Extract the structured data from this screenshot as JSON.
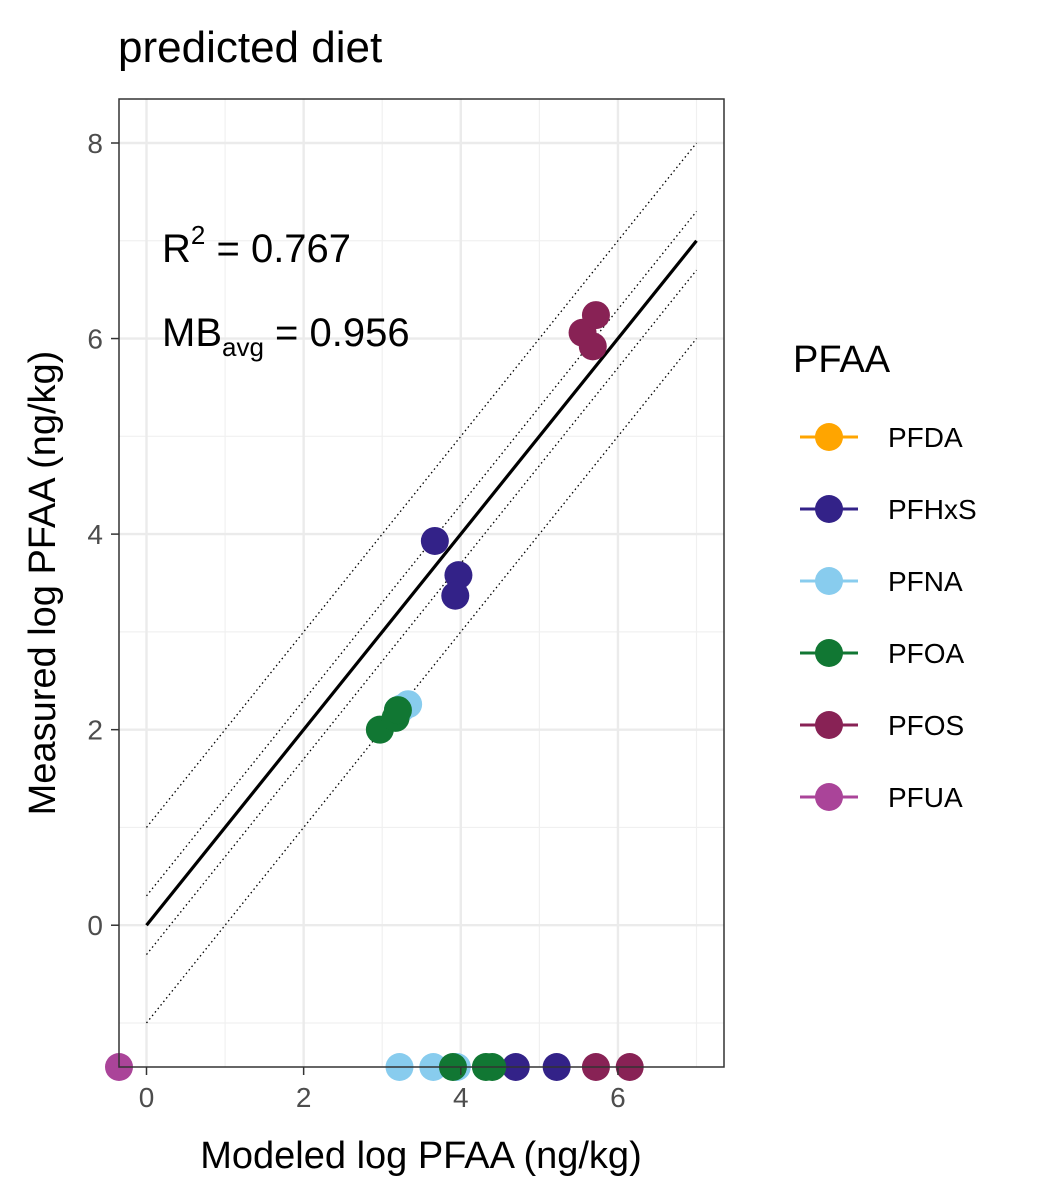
{
  "chart_data": {
    "type": "scatter",
    "title": "predicted diet",
    "xlabel": "Modeled log PFAA (ng/kg)",
    "ylabel": "Measured log PFAA (ng/kg)",
    "xlim": [
      -0.35,
      7.35
    ],
    "ylim": [
      -1.45,
      8.45
    ],
    "x_ticks": [
      0,
      2,
      4,
      6
    ],
    "y_ticks": [
      0,
      2,
      4,
      6,
      8
    ],
    "grid": true,
    "annotations": {
      "r2_base": "R",
      "r2_sup": "2",
      "r2_value": " = 0.767",
      "mb_base": "MB",
      "mb_sub": "avg",
      "mb_value": " = 0.956"
    },
    "reference_lines": {
      "identity": {
        "from": [
          0,
          0
        ],
        "to": [
          7,
          7
        ]
      },
      "offsets": [
        -1,
        -0.3,
        0.3,
        1
      ]
    },
    "legend": {
      "title": "PFAA",
      "position": "right"
    },
    "series": [
      {
        "name": "PFDA",
        "color": "#FFA500",
        "points": []
      },
      {
        "name": "PFHxS",
        "color": "#332288",
        "points": [
          [
            3.67,
            3.93
          ],
          [
            3.97,
            3.58
          ],
          [
            3.93,
            3.37
          ],
          [
            4.7,
            -1.45
          ],
          [
            5.22,
            -1.45
          ]
        ]
      },
      {
        "name": "PFNA",
        "color": "#88CCEE",
        "points": [
          [
            3.2,
            2.2
          ],
          [
            3.25,
            2.22
          ],
          [
            3.33,
            2.26
          ],
          [
            3.22,
            -1.45
          ],
          [
            3.65,
            -1.45
          ],
          [
            3.95,
            -1.45
          ]
        ]
      },
      {
        "name": "PFOA",
        "color": "#117733",
        "points": [
          [
            2.97,
            2.0
          ],
          [
            3.17,
            2.12
          ],
          [
            3.2,
            2.2
          ],
          [
            3.9,
            -1.45
          ],
          [
            4.32,
            -1.45
          ],
          [
            4.4,
            -1.45
          ]
        ]
      },
      {
        "name": "PFOS",
        "color": "#882255",
        "points": [
          [
            5.55,
            6.06
          ],
          [
            5.72,
            6.24
          ],
          [
            5.68,
            5.92
          ],
          [
            5.72,
            -1.45
          ],
          [
            6.15,
            -1.45
          ]
        ]
      },
      {
        "name": "PFUA",
        "color": "#AA4499",
        "points": [
          [
            -0.35,
            -1.45
          ]
        ]
      }
    ]
  }
}
